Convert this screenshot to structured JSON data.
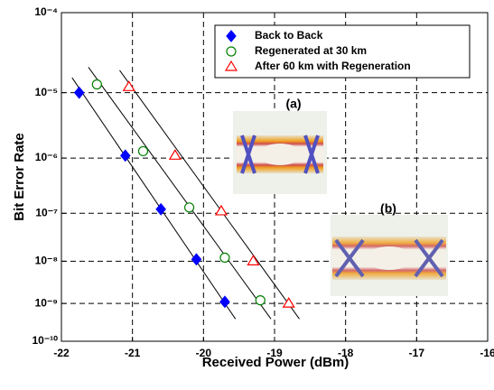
{
  "chart_data": {
    "type": "scatter",
    "xlabel": "Received Power (dBm)",
    "ylabel": "Bit Error Rate",
    "xlim": [
      -22,
      -16
    ],
    "xticks": [
      -22,
      -21,
      -20,
      -19,
      -18,
      -17,
      -16
    ],
    "ylim": [
      0.0001,
      1e-10
    ],
    "yscale": "log10(-log10(BER))",
    "yticks": [
      {
        "value": 0.0001,
        "label": "10⁻⁴"
      },
      {
        "value": 1e-05,
        "label": "10⁻⁵"
      },
      {
        "value": 1e-06,
        "label": "10⁻⁶"
      },
      {
        "value": 1e-07,
        "label": "10⁻⁷"
      },
      {
        "value": 1e-08,
        "label": "10⁻⁸"
      },
      {
        "value": 1e-09,
        "label": "10⁻⁹"
      },
      {
        "value": 1e-10,
        "label": "10⁻¹⁰"
      }
    ],
    "grid": true,
    "legend": "top-right",
    "series": [
      {
        "name": "Back to Back",
        "color": "#0000ff",
        "marker": "diamond",
        "filled": true,
        "x": [
          -21.75,
          -21.1,
          -20.6,
          -20.1,
          -19.7
        ],
        "values": [
          1e-05,
          1.1e-06,
          1.2e-07,
          1.1e-08,
          1.1e-09
        ],
        "fit_x": [
          -21.85,
          -19.55
        ],
        "fit_values": [
          1.6e-05,
          4e-10
        ]
      },
      {
        "name": "Regenerated at 30 km",
        "color": "#008000",
        "marker": "circle",
        "filled": false,
        "x": [
          -21.5,
          -20.85,
          -20.2,
          -19.7,
          -19.2
        ],
        "values": [
          1.3e-05,
          1.3e-06,
          1.3e-07,
          1.2e-08,
          1.2e-09
        ],
        "fit_x": [
          -21.62,
          -19.05
        ],
        "fit_values": [
          2.2e-05,
          4e-10
        ]
      },
      {
        "name": "After 60 km with Regeneration",
        "color": "#ff0000",
        "marker": "triangle",
        "filled": false,
        "x": [
          -21.05,
          -20.4,
          -19.75,
          -19.3,
          -18.8
        ],
        "values": [
          1.2e-05,
          1.1e-06,
          1.1e-07,
          1e-08,
          1e-09
        ],
        "fit_x": [
          -21.18,
          -18.65
        ],
        "fit_values": [
          2e-05,
          4e-10
        ]
      }
    ],
    "annotations": [
      "(a)",
      "(b)"
    ]
  }
}
